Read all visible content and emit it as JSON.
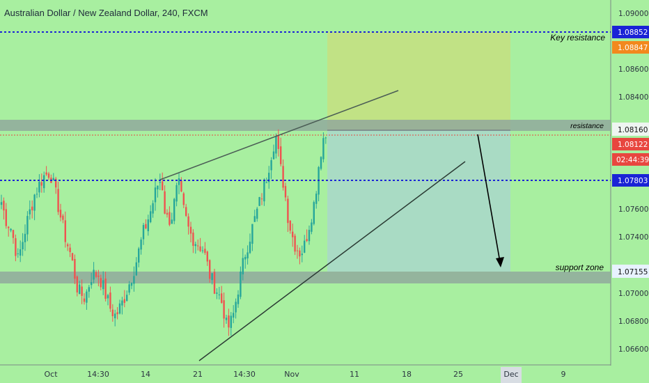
{
  "chart_title": "Australian Dollar / New Zealand Dollar, 240, FXCM",
  "chart_data": {
    "type": "candlestick",
    "symbol": "Australian Dollar / New Zealand Dollar",
    "interval": "240",
    "source": "FXCM",
    "ylim": [
      1.065,
      1.091
    ],
    "y_ticks": [
      "1.09000",
      "1.08600",
      "1.08400",
      "1.07600",
      "1.07400",
      "1.07000",
      "1.06800",
      "1.06600"
    ],
    "x_ticks": [
      "Oct",
      "14:30",
      "14",
      "21",
      "14:30",
      "Nov",
      "11",
      "18",
      "25",
      "Dec",
      "9"
    ],
    "levels": [
      {
        "label": "1.08852",
        "value": 1.08852,
        "color": "#1a23d6",
        "line": "dotted"
      },
      {
        "label": "1.08847",
        "value": 1.08847,
        "color": "#f2891e",
        "line": "none"
      },
      {
        "label": "1.08160",
        "value": 1.0816,
        "color": "#6a7a78",
        "line": "zone"
      },
      {
        "label": "1.08122",
        "value": 1.08122,
        "color": "#e8463f",
        "line": "dotted"
      },
      {
        "label": "02:44:39",
        "value": 1.0799,
        "color": "#e8463f",
        "line": "none"
      },
      {
        "label": "1.07803",
        "value": 1.07803,
        "color": "#1a23d6",
        "line": "dotted"
      },
      {
        "label": "1.07155",
        "value": 1.07155,
        "color": "#e8f2ff",
        "line": "zone"
      }
    ],
    "annotations": [
      "Key resistance",
      "resistance",
      "support zone"
    ],
    "colors": {
      "up": "#26a69a",
      "down": "#ef5350",
      "background": "#a8efa0",
      "profit": "#c8e07f",
      "loss": "#a8d9c4"
    },
    "candle_pivots": [
      [
        0,
        1.0768
      ],
      [
        8,
        1.0752
      ],
      [
        16,
        1.0745
      ],
      [
        26,
        1.0722
      ],
      [
        38,
        1.0748
      ],
      [
        50,
        1.077
      ],
      [
        62,
        1.0782
      ],
      [
        72,
        1.0786
      ],
      [
        82,
        1.0765
      ],
      [
        92,
        1.0742
      ],
      [
        102,
        1.0725
      ],
      [
        112,
        1.07
      ],
      [
        122,
        1.0695
      ],
      [
        132,
        1.0712
      ],
      [
        142,
        1.0712
      ],
      [
        150,
        1.07
      ],
      [
        158,
        1.0688
      ],
      [
        166,
        1.0682
      ],
      [
        176,
        1.0692
      ],
      [
        186,
        1.0706
      ],
      [
        196,
        1.0722
      ],
      [
        206,
        1.0742
      ],
      [
        216,
        1.0757
      ],
      [
        226,
        1.0776
      ],
      [
        232,
        1.0781
      ],
      [
        238,
        1.0752
      ],
      [
        246,
        1.0752
      ],
      [
        256,
        1.0778
      ],
      [
        264,
        1.0757
      ],
      [
        272,
        1.0742
      ],
      [
        282,
        1.0735
      ],
      [
        292,
        1.073
      ],
      [
        302,
        1.071
      ],
      [
        312,
        1.07
      ],
      [
        320,
        1.069
      ],
      [
        326,
        1.0672
      ],
      [
        334,
        1.068
      ],
      [
        342,
        1.0702
      ],
      [
        352,
        1.0727
      ],
      [
        362,
        1.0745
      ],
      [
        372,
        1.0762
      ],
      [
        382,
        1.078
      ],
      [
        390,
        1.08
      ],
      [
        396,
        1.0812
      ],
      [
        402,
        1.079
      ],
      [
        408,
        1.0775
      ],
      [
        414,
        1.0752
      ],
      [
        422,
        1.0735
      ],
      [
        430,
        1.0728
      ],
      [
        436,
        1.073
      ],
      [
        444,
        1.0748
      ],
      [
        452,
        1.0765
      ],
      [
        458,
        1.0792
      ],
      [
        464,
        1.081
      ],
      [
        470,
        1.0812
      ]
    ]
  }
}
